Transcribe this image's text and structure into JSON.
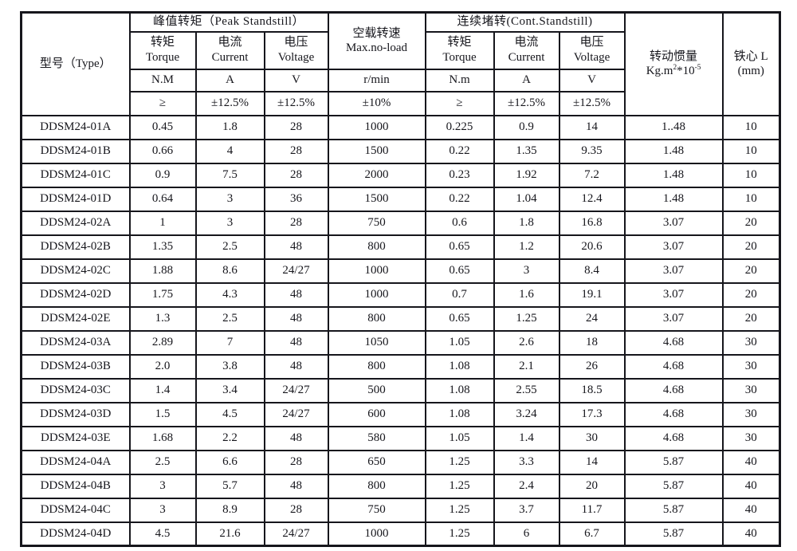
{
  "page": {
    "background": "#ffffff",
    "text_color": "#16161c",
    "border_color": "#16161c"
  },
  "table": {
    "header": {
      "type_label": "型号（Type）",
      "peak_group": "峰值转矩（Peak Standstill）",
      "cont_group": "连续堵转(Cont.Standstill)",
      "noload_zh": "空载转速",
      "noload_en": "Max.no-load",
      "inertia_zh": "转动惯量",
      "inertia_unit": {
        "base1": "Kg.m",
        "exp1": "2",
        "base2": "*10",
        "exp2": "-5"
      },
      "core_zh": "铁心 L",
      "core_unit": "(mm)",
      "torque_zh": "转矩",
      "torque_en": "Torque",
      "current_zh": "电流",
      "current_en": "Current",
      "voltage_zh": "电压",
      "voltage_en": "Voltage",
      "peak_torque_unit": "N.M",
      "cont_torque_unit": "N.m",
      "current_unit": "A",
      "voltage_unit": "V",
      "noload_unit": "r/min",
      "ge_symbol": "≥",
      "tol_current": "±12.5%",
      "tol_voltage": "±12.5%",
      "tol_noload": "±10%"
    },
    "rows": [
      [
        "DDSM24-01A",
        "0.45",
        "1.8",
        "28",
        "1000",
        "0.225",
        "0.9",
        "14",
        "1..48",
        "10"
      ],
      [
        "DDSM24-01B",
        "0.66",
        "4",
        "28",
        "1500",
        "0.22",
        "1.35",
        "9.35",
        "1.48",
        "10"
      ],
      [
        "DDSM24-01C",
        "0.9",
        "7.5",
        "28",
        "2000",
        "0.23",
        "1.92",
        "7.2",
        "1.48",
        "10"
      ],
      [
        "DDSM24-01D",
        "0.64",
        "3",
        "36",
        "1500",
        "0.22",
        "1.04",
        "12.4",
        "1.48",
        "10"
      ],
      [
        "DDSM24-02A",
        "1",
        "3",
        "28",
        "750",
        "0.6",
        "1.8",
        "16.8",
        "3.07",
        "20"
      ],
      [
        "DDSM24-02B",
        "1.35",
        "2.5",
        "48",
        "800",
        "0.65",
        "1.2",
        "20.6",
        "3.07",
        "20"
      ],
      [
        "DDSM24-02C",
        "1.88",
        "8.6",
        "24/27",
        "1000",
        "0.65",
        "3",
        "8.4",
        "3.07",
        "20"
      ],
      [
        "DDSM24-02D",
        "1.75",
        "4.3",
        "48",
        "1000",
        "0.7",
        "1.6",
        "19.1",
        "3.07",
        "20"
      ],
      [
        "DDSM24-02E",
        "1.3",
        "2.5",
        "48",
        "800",
        "0.65",
        "1.25",
        "24",
        "3.07",
        "20"
      ],
      [
        "DDSM24-03A",
        "2.89",
        "7",
        "48",
        "1050",
        "1.05",
        "2.6",
        "18",
        "4.68",
        "30"
      ],
      [
        "DDSM24-03B",
        "2.0",
        "3.8",
        "48",
        "800",
        "1.08",
        "2.1",
        "26",
        "4.68",
        "30"
      ],
      [
        "DDSM24-03C",
        "1.4",
        "3.4",
        "24/27",
        "500",
        "1.08",
        "2.55",
        "18.5",
        "4.68",
        "30"
      ],
      [
        "DDSM24-03D",
        "1.5",
        "4.5",
        "24/27",
        "600",
        "1.08",
        "3.24",
        "17.3",
        "4.68",
        "30"
      ],
      [
        "DDSM24-03E",
        "1.68",
        "2.2",
        "48",
        "580",
        "1.05",
        "1.4",
        "30",
        "4.68",
        "30"
      ],
      [
        "DDSM24-04A",
        "2.5",
        "6.6",
        "28",
        "650",
        "1.25",
        "3.3",
        "14",
        "5.87",
        "40"
      ],
      [
        "DDSM24-04B",
        "3",
        "5.7",
        "48",
        "800",
        "1.25",
        "2.4",
        "20",
        "5.87",
        "40"
      ],
      [
        "DDSM24-04C",
        "3",
        "8.9",
        "28",
        "750",
        "1.25",
        "3.7",
        "11.7",
        "5.87",
        "40"
      ],
      [
        "DDSM24-04D",
        "4.5",
        "21.6",
        "24/27",
        "1000",
        "1.25",
        "6",
        "6.7",
        "5.87",
        "40"
      ]
    ],
    "column_keys": [
      "type",
      "peak-torque",
      "peak-current",
      "peak-voltage",
      "max-noload",
      "cont-torque",
      "cont-current",
      "cont-voltage",
      "inertia",
      "core-length"
    ]
  }
}
